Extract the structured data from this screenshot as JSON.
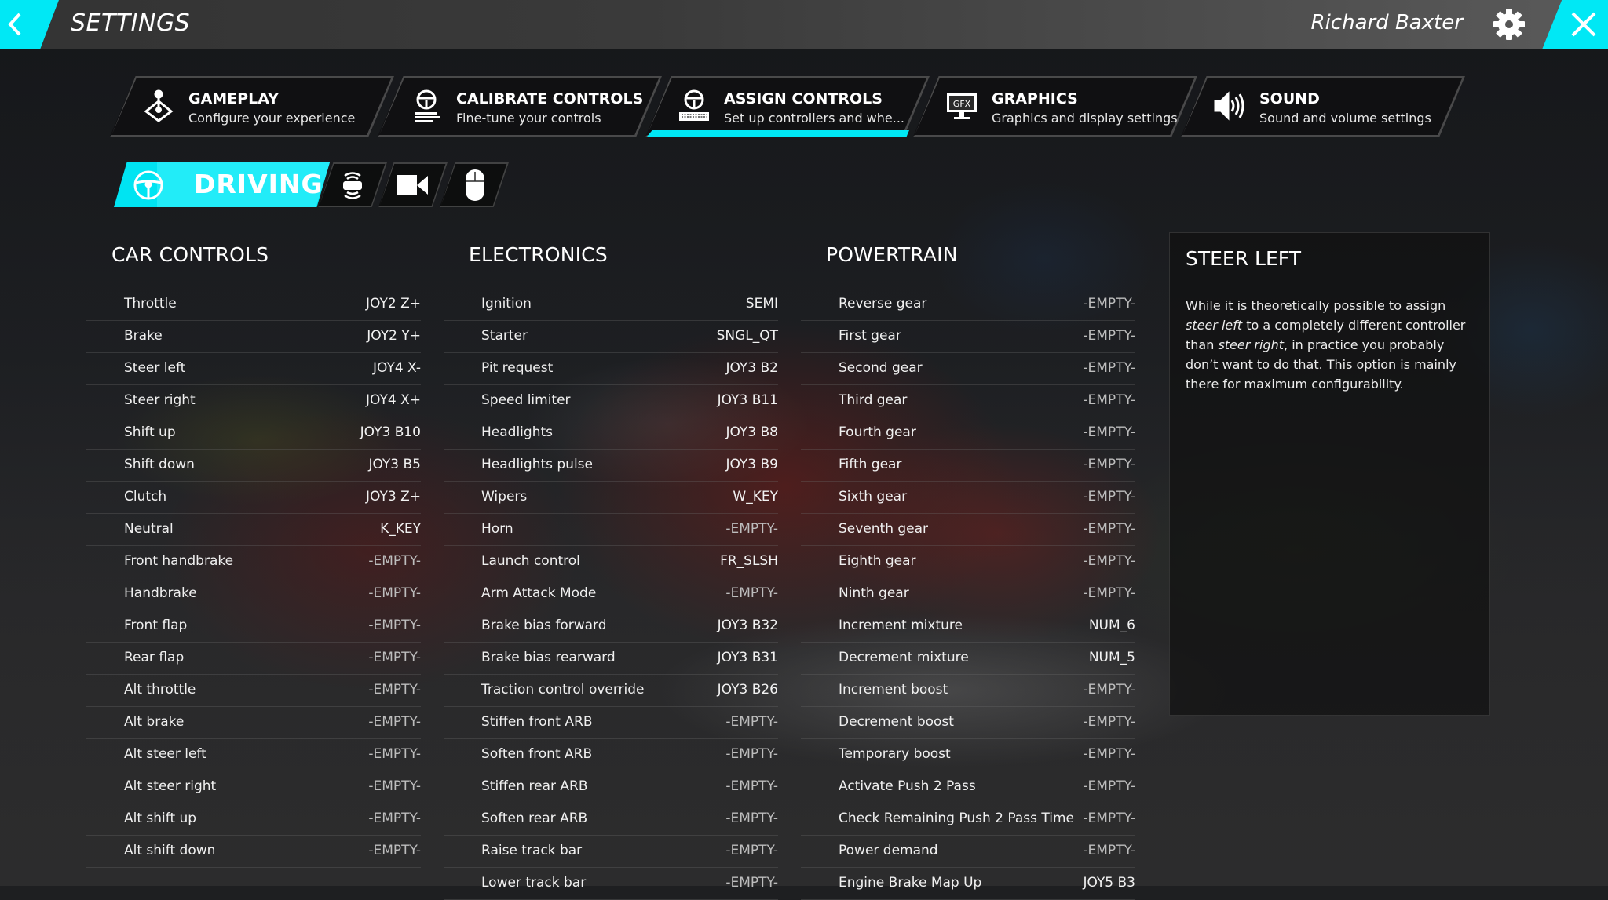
{
  "header": {
    "title": "SETTINGS",
    "user_name": "Richard Baxter",
    "back_icon": "chevron-left-icon",
    "gear_icon": "gear-icon",
    "close_icon": "close-icon"
  },
  "colors": {
    "accent": "#00e8f5",
    "topbar": "#3a3a3a",
    "panel": "#101011"
  },
  "main_tabs": [
    {
      "label": "GAMEPLAY",
      "subtitle": "Configure your experience",
      "icon": "joystick-icon",
      "active": false
    },
    {
      "label": "CALIBRATE CONTROLS",
      "subtitle": "Fine-tune your controls",
      "icon": "steering-calibrate-icon",
      "active": false
    },
    {
      "label": "ASSIGN CONTROLS",
      "subtitle": "Set up controllers and whe...",
      "icon": "steering-keyboard-icon",
      "active": true
    },
    {
      "label": "GRAPHICS",
      "subtitle": "Graphics and display settings",
      "icon": "gfx-monitor-icon",
      "active": false
    },
    {
      "label": "SOUND",
      "subtitle": "Sound and volume settings",
      "icon": "speaker-icon",
      "active": false
    }
  ],
  "sub_tabs": [
    {
      "label": "DRIVING",
      "icon": "steering-wheel-icon",
      "active": true
    },
    {
      "label": "",
      "icon": "car-sensors-icon",
      "active": false
    },
    {
      "label": "",
      "icon": "camera-icon",
      "active": false
    },
    {
      "label": "",
      "icon": "mouse-icon",
      "active": false
    }
  ],
  "columns": [
    {
      "title": "CAR CONTROLS",
      "rows": [
        {
          "name": "Throttle",
          "value": "JOY2 Z+"
        },
        {
          "name": "Brake",
          "value": "JOY2 Y+"
        },
        {
          "name": "Steer left",
          "value": "JOY4 X-"
        },
        {
          "name": "Steer right",
          "value": "JOY4 X+"
        },
        {
          "name": "Shift up",
          "value": "JOY3 B10"
        },
        {
          "name": "Shift down",
          "value": "JOY3 B5"
        },
        {
          "name": "Clutch",
          "value": "JOY3 Z+"
        },
        {
          "name": "Neutral",
          "value": "K_KEY"
        },
        {
          "name": "Front handbrake",
          "value": "-EMPTY-"
        },
        {
          "name": "Handbrake",
          "value": "-EMPTY-"
        },
        {
          "name": "Front flap",
          "value": "-EMPTY-"
        },
        {
          "name": "Rear flap",
          "value": "-EMPTY-"
        },
        {
          "name": "Alt throttle",
          "value": "-EMPTY-"
        },
        {
          "name": "Alt brake",
          "value": "-EMPTY-"
        },
        {
          "name": "Alt steer left",
          "value": "-EMPTY-"
        },
        {
          "name": "Alt steer right",
          "value": "-EMPTY-"
        },
        {
          "name": "Alt shift up",
          "value": "-EMPTY-"
        },
        {
          "name": "Alt shift down",
          "value": "-EMPTY-"
        }
      ]
    },
    {
      "title": "ELECTRONICS",
      "rows": [
        {
          "name": "Ignition",
          "value": "SEMI"
        },
        {
          "name": "Starter",
          "value": "SNGL_QT"
        },
        {
          "name": "Pit request",
          "value": "JOY3 B2"
        },
        {
          "name": "Speed limiter",
          "value": "JOY3 B11"
        },
        {
          "name": "Headlights",
          "value": "JOY3 B8"
        },
        {
          "name": "Headlights pulse",
          "value": "JOY3 B9"
        },
        {
          "name": "Wipers",
          "value": "W_KEY"
        },
        {
          "name": "Horn",
          "value": "-EMPTY-"
        },
        {
          "name": "Launch control",
          "value": "FR_SLSH"
        },
        {
          "name": "Arm Attack Mode",
          "value": "-EMPTY-"
        },
        {
          "name": "Brake bias forward",
          "value": "JOY3 B32"
        },
        {
          "name": "Brake bias rearward",
          "value": "JOY3 B31"
        },
        {
          "name": "Traction control override",
          "value": "JOY3 B26"
        },
        {
          "name": "Stiffen front ARB",
          "value": "-EMPTY-"
        },
        {
          "name": "Soften front ARB",
          "value": "-EMPTY-"
        },
        {
          "name": "Stiffen rear ARB",
          "value": "-EMPTY-"
        },
        {
          "name": "Soften rear ARB",
          "value": "-EMPTY-"
        },
        {
          "name": "Raise track bar",
          "value": "-EMPTY-"
        },
        {
          "name": "Lower track bar",
          "value": "-EMPTY-"
        }
      ]
    },
    {
      "title": "POWERTRAIN",
      "rows": [
        {
          "name": "Reverse gear",
          "value": "-EMPTY-"
        },
        {
          "name": "First gear",
          "value": "-EMPTY-"
        },
        {
          "name": "Second gear",
          "value": "-EMPTY-"
        },
        {
          "name": "Third gear",
          "value": "-EMPTY-"
        },
        {
          "name": "Fourth gear",
          "value": "-EMPTY-"
        },
        {
          "name": "Fifth gear",
          "value": "-EMPTY-"
        },
        {
          "name": "Sixth gear",
          "value": "-EMPTY-"
        },
        {
          "name": "Seventh gear",
          "value": "-EMPTY-"
        },
        {
          "name": "Eighth gear",
          "value": "-EMPTY-"
        },
        {
          "name": "Ninth gear",
          "value": "-EMPTY-"
        },
        {
          "name": "Increment mixture",
          "value": "NUM_6"
        },
        {
          "name": "Decrement mixture",
          "value": "NUM_5"
        },
        {
          "name": "Increment boost",
          "value": "-EMPTY-"
        },
        {
          "name": "Decrement boost",
          "value": "-EMPTY-"
        },
        {
          "name": "Temporary boost",
          "value": "-EMPTY-"
        },
        {
          "name": "Activate Push 2 Pass",
          "value": "-EMPTY-"
        },
        {
          "name": "Check Remaining Push 2 Pass Time",
          "value": "-EMPTY-"
        },
        {
          "name": "Power demand",
          "value": "-EMPTY-"
        },
        {
          "name": "Engine Brake Map Up",
          "value": "JOY5 B3"
        }
      ]
    }
  ],
  "info_panel": {
    "title": "STEER LEFT",
    "text_parts": [
      {
        "text": "While it is theoretically possible to assign ",
        "italic": false
      },
      {
        "text": "steer left",
        "italic": true
      },
      {
        "text": " to a completely different controller than ",
        "italic": false
      },
      {
        "text": "steer right",
        "italic": true
      },
      {
        "text": ", in practice you probably don’t want to do that. This option is mainly there for maximum configurability.",
        "italic": false
      }
    ]
  }
}
